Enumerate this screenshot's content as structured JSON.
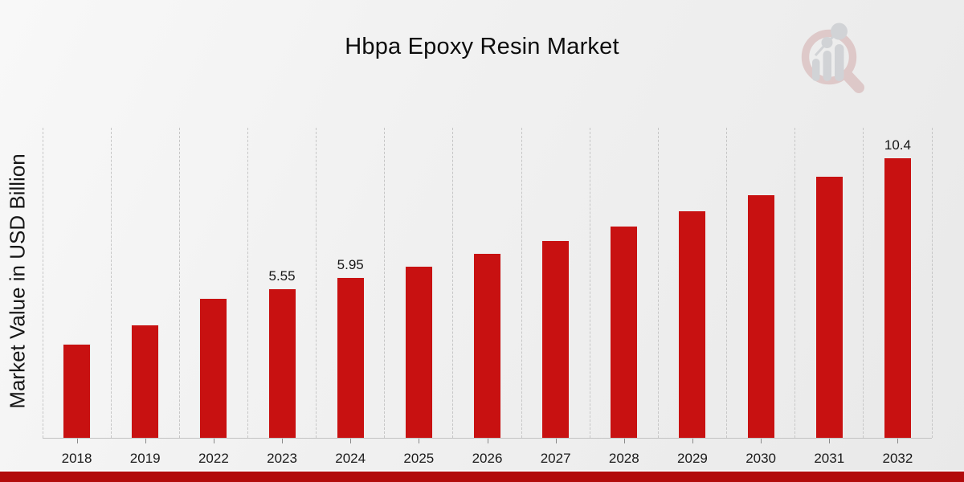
{
  "title": "Hbpa Epoxy Resin Market",
  "y_axis_label": "Market Value in USD Billion",
  "colors": {
    "bar": "#c81111",
    "bottom_stripe": "#b20b0b",
    "background_light": "#f8f8f8",
    "background_dark": "#e9e9e9",
    "logo_red": "#bc7878",
    "logo_gray": "#9499a3"
  },
  "logo": {
    "name": "magnifier-bar-chart-logo"
  },
  "chart_data": {
    "type": "bar",
    "title": "Hbpa Epoxy Resin Market",
    "xlabel": "",
    "ylabel": "Market Value in USD Billion",
    "categories": [
      "2018",
      "2019",
      "2022",
      "2023",
      "2024",
      "2025",
      "2026",
      "2027",
      "2028",
      "2029",
      "2030",
      "2031",
      "2032"
    ],
    "values": [
      3.5,
      4.2,
      5.17,
      5.55,
      5.95,
      6.38,
      6.84,
      7.33,
      7.87,
      8.43,
      9.04,
      9.7,
      10.4
    ],
    "data_labels": [
      "",
      "",
      "",
      "5.55",
      "5.95",
      "",
      "",
      "",
      "",
      "",
      "",
      "",
      "10.4"
    ],
    "ylim": [
      0,
      11.5
    ],
    "grid": "vertical-dashed",
    "legend": "none",
    "bar_color": "#c81111"
  }
}
